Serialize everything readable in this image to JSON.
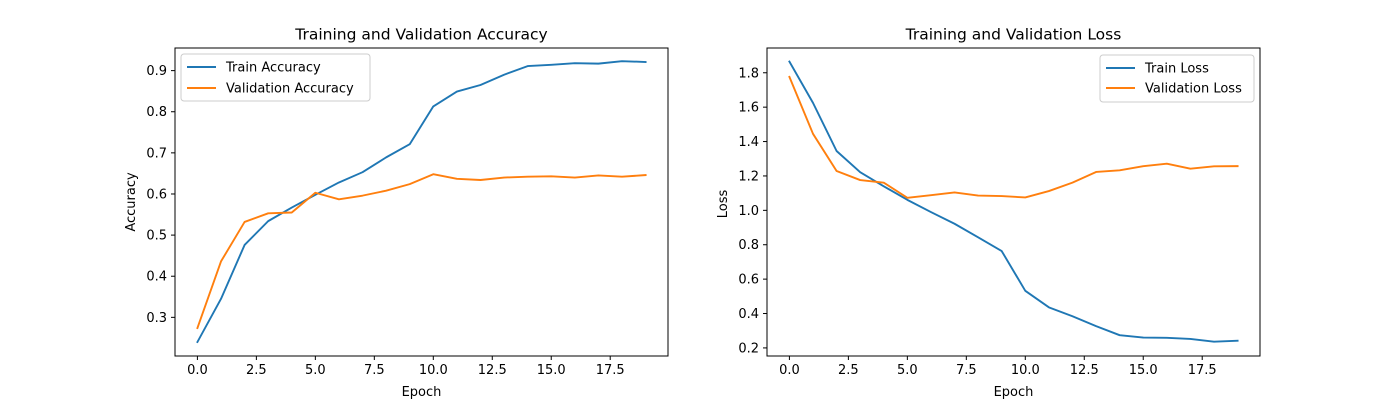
{
  "chart_data": [
    {
      "type": "line",
      "title": "Training and Validation Accuracy",
      "xlabel": "Epoch",
      "ylabel": "Accuracy",
      "xlim": [
        -0.95,
        19.95
      ],
      "ylim": [
        0.206,
        0.955
      ],
      "xticks": [
        0.0,
        2.5,
        5.0,
        7.5,
        10.0,
        12.5,
        15.0,
        17.5
      ],
      "xtick_labels": [
        "0.0",
        "2.5",
        "5.0",
        "7.5",
        "10.0",
        "12.5",
        "15.0",
        "17.5"
      ],
      "yticks": [
        0.3,
        0.4,
        0.5,
        0.6,
        0.7,
        0.8,
        0.9
      ],
      "ytick_labels": [
        "0.3",
        "0.4",
        "0.5",
        "0.6",
        "0.7",
        "0.8",
        "0.9"
      ],
      "grid": false,
      "legend_position": "upper left",
      "x": [
        0,
        1,
        2,
        3,
        4,
        5,
        6,
        7,
        8,
        9,
        10,
        11,
        12,
        13,
        14,
        15,
        16,
        17,
        18,
        19
      ],
      "series": [
        {
          "name": "Train Accuracy",
          "color": "#1f77b4",
          "values": [
            0.24,
            0.345,
            0.476,
            0.534,
            0.567,
            0.598,
            0.628,
            0.653,
            0.689,
            0.721,
            0.813,
            0.849,
            0.865,
            0.89,
            0.911,
            0.914,
            0.918,
            0.917,
            0.923,
            0.921
          ]
        },
        {
          "name": "Validation Accuracy",
          "color": "#ff7f0e",
          "values": [
            0.274,
            0.436,
            0.532,
            0.553,
            0.555,
            0.603,
            0.587,
            0.596,
            0.608,
            0.624,
            0.648,
            0.637,
            0.634,
            0.64,
            0.642,
            0.643,
            0.64,
            0.645,
            0.642,
            0.646
          ]
        }
      ]
    },
    {
      "type": "line",
      "title": "Training and Validation Loss",
      "xlabel": "Epoch",
      "ylabel": "Loss",
      "xlim": [
        -0.95,
        19.95
      ],
      "ylim": [
        0.153,
        1.944
      ],
      "xticks": [
        0.0,
        2.5,
        5.0,
        7.5,
        10.0,
        12.5,
        15.0,
        17.5
      ],
      "xtick_labels": [
        "0.0",
        "2.5",
        "5.0",
        "7.5",
        "10.0",
        "12.5",
        "15.0",
        "17.5"
      ],
      "yticks": [
        0.2,
        0.4,
        0.6,
        0.8,
        1.0,
        1.2,
        1.4,
        1.6,
        1.8
      ],
      "ytick_labels": [
        "0.2",
        "0.4",
        "0.6",
        "0.8",
        "1.0",
        "1.2",
        "1.4",
        "1.6",
        "1.8"
      ],
      "grid": false,
      "legend_position": "upper right",
      "x": [
        0,
        1,
        2,
        3,
        4,
        5,
        6,
        7,
        8,
        9,
        10,
        11,
        12,
        13,
        14,
        15,
        16,
        17,
        18,
        19
      ],
      "series": [
        {
          "name": "Train Loss",
          "color": "#1f77b4",
          "values": [
            1.865,
            1.625,
            1.345,
            1.222,
            1.14,
            1.061,
            0.99,
            0.922,
            0.843,
            0.763,
            0.532,
            0.436,
            0.384,
            0.327,
            0.274,
            0.26,
            0.259,
            0.252,
            0.236,
            0.242
          ]
        },
        {
          "name": "Validation Loss",
          "color": "#ff7f0e",
          "values": [
            1.776,
            1.445,
            1.229,
            1.176,
            1.161,
            1.073,
            1.088,
            1.104,
            1.086,
            1.083,
            1.075,
            1.112,
            1.161,
            1.223,
            1.233,
            1.257,
            1.271,
            1.242,
            1.256,
            1.257
          ]
        }
      ]
    }
  ]
}
